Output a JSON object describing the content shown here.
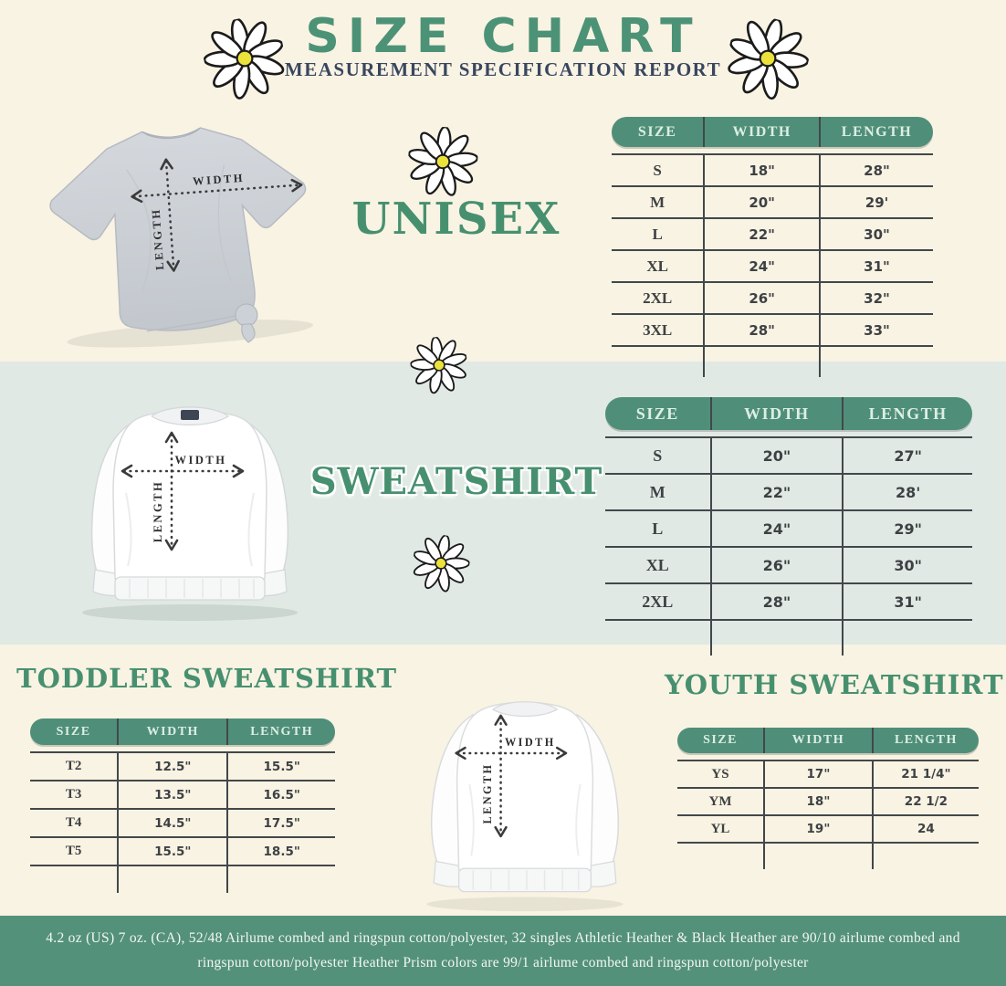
{
  "header": {
    "title": "SIZE CHART",
    "subtitle": "MEASUREMENT SPECIFICATION REPORT"
  },
  "colors": {
    "background_cream": "#f9f3e3",
    "band_mint": "#e0e9e4",
    "table_pill_green": "#4f8f79",
    "pill_text_mint": "#ddeee4",
    "title_green": "#4c9276",
    "heading_green": "#47906f",
    "subtitle_navy": "#394660",
    "footer_green": "#54917a",
    "table_line": "#43474b",
    "table_text": "#3e4144"
  },
  "diagram": {
    "width_label": "WIDTH",
    "length_label": "LENGTH"
  },
  "sections": {
    "unisex": {
      "heading": "UNISEX",
      "table": {
        "headers": [
          "SIZE",
          "WIDTH",
          "LENGTH"
        ],
        "rows": [
          [
            "S",
            "18\"",
            "28\""
          ],
          [
            "M",
            "20\"",
            "29'"
          ],
          [
            "L",
            "22\"",
            "30\""
          ],
          [
            "XL",
            "24\"",
            "31\""
          ],
          [
            "2XL",
            "26\"",
            "32\""
          ],
          [
            "3XL",
            "28\"",
            "33\""
          ]
        ]
      }
    },
    "sweatshirt": {
      "heading": "SWEATSHIRT",
      "table": {
        "headers": [
          "SIZE",
          "WIDTH",
          "LENGTH"
        ],
        "rows": [
          [
            "S",
            "20\"",
            "27\""
          ],
          [
            "M",
            "22\"",
            "28'"
          ],
          [
            "L",
            "24\"",
            "29\""
          ],
          [
            "XL",
            "26\"",
            "30\""
          ],
          [
            "2XL",
            "28\"",
            "31\""
          ]
        ]
      }
    },
    "toddler": {
      "heading": "TODDLER SWEATSHIRT",
      "table": {
        "headers": [
          "SIZE",
          "WIDTH",
          "LENGTH"
        ],
        "rows": [
          [
            "T2",
            "12.5\"",
            "15.5\""
          ],
          [
            "T3",
            "13.5\"",
            "16.5\""
          ],
          [
            "T4",
            "14.5\"",
            "17.5\""
          ],
          [
            "T5",
            "15.5\"",
            "18.5\""
          ]
        ]
      }
    },
    "youth": {
      "heading": "YOUTH SWEATSHIRT",
      "table": {
        "headers": [
          "SIZE",
          "WIDTH",
          "LENGTH"
        ],
        "rows": [
          [
            "YS",
            "17\"",
            "21 1/4\""
          ],
          [
            "YM",
            "18\"",
            "22 1/2"
          ],
          [
            "YL",
            "19\"",
            "24"
          ]
        ]
      }
    }
  },
  "footer": {
    "line1": "4.2 oz (US) 7 oz. (CA), 52/48 Airlume combed and ringspun cotton/polyester, 32 singles Athletic Heather & Black Heather are 90/10 airlume combed and",
    "line2": "ringspun cotton/polyester Heather Prism colors are 99/1 airlume combed and ringspun cotton/polyester"
  }
}
